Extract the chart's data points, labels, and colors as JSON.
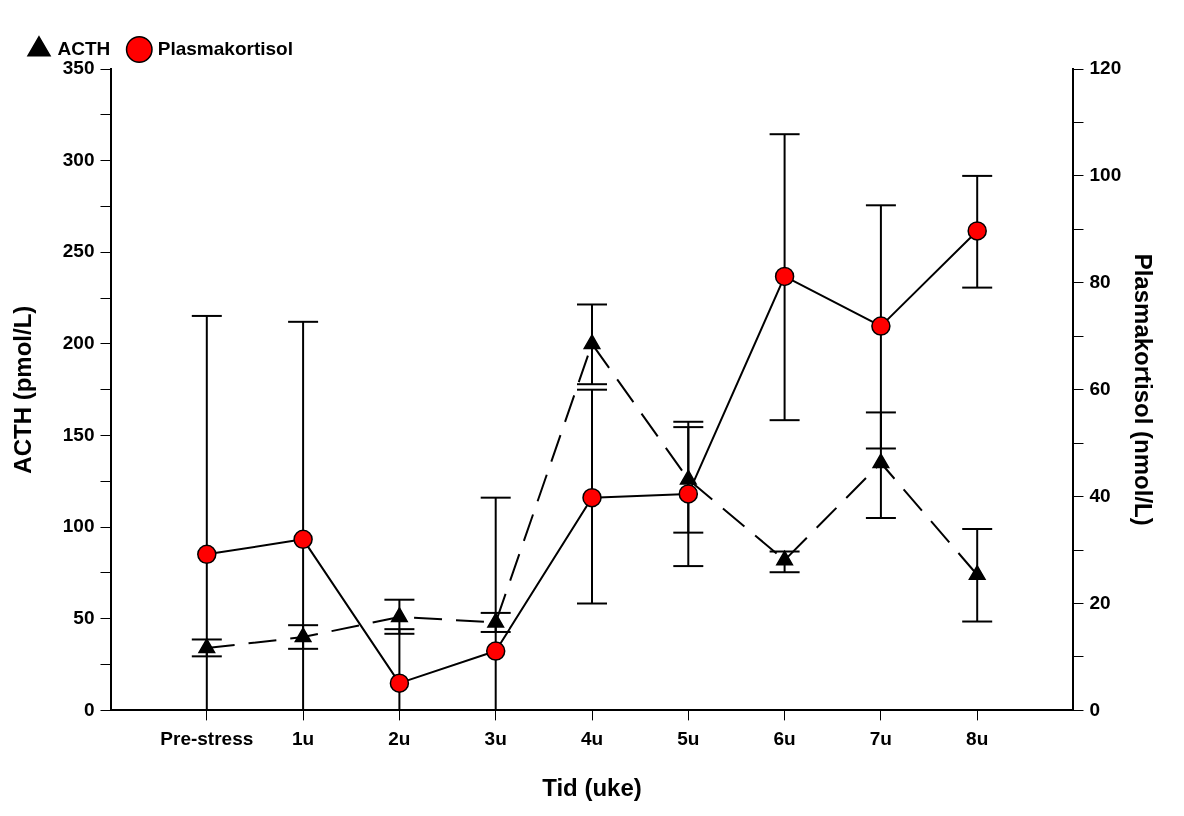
{
  "chart_data": {
    "type": "line",
    "xlabel": "Tid (uke)",
    "ylabel": "ACTH (pmol/L)",
    "y2label": "Plasmakortisol (nmol/L)",
    "categories": [
      "Pre-stress",
      "1u",
      "2u",
      "3u",
      "4u",
      "5u",
      "6u",
      "7u",
      "8u"
    ],
    "series": [
      {
        "name": "ACTH",
        "color": "#000000",
        "marker": "triangle",
        "line_style": "dashed",
        "values": [
          34,
          40,
          51,
          48,
          200,
          126,
          82,
          135,
          74
        ],
        "errors": [
          [
            29.5,
            38.7
          ],
          [
            33.6,
            46.5
          ],
          [
            41.8,
            60.4
          ],
          [
            42.8,
            53.2
          ],
          [
            178,
            221.5
          ],
          [
            97,
            157.5
          ],
          [
            75.4,
            86.7
          ],
          [
            105,
            162.6
          ],
          [
            48.5,
            99
          ]
        ]
      },
      {
        "name": "Plasmakortisol",
        "color": "#ff0000",
        "marker": "circle",
        "line_style": "solid",
        "axis": "y2",
        "values": [
          29.2,
          32,
          5.1,
          11.1,
          39.8,
          40.5,
          81.2,
          71.9,
          89.7
        ],
        "errors": [
          [
            0,
            73.8
          ],
          [
            0,
            72.7
          ],
          [
            0,
            15.2
          ],
          [
            0,
            39.8
          ],
          [
            20,
            60
          ],
          [
            27,
            53
          ],
          [
            54.3,
            107.8
          ],
          [
            49,
            94.5
          ],
          [
            79.1,
            100
          ]
        ]
      }
    ],
    "ylim": [
      0,
      350
    ],
    "yticks": [
      0,
      {
        "value": 25,
        "label": null
      },
      50,
      {
        "value": 75,
        "label": null
      },
      100,
      {
        "value": 125,
        "label": null
      },
      150,
      {
        "value": 175,
        "label": null
      },
      200,
      {
        "value": 225,
        "label": null
      },
      250,
      {
        "value": 275,
        "label": null
      },
      300,
      {
        "value": 325,
        "label": null
      },
      350
    ],
    "y2lim": [
      0,
      120
    ],
    "y2ticks": [
      0,
      {
        "value": 10,
        "label": null
      },
      20,
      {
        "value": 30,
        "label": null
      },
      40,
      {
        "value": 50,
        "label": null
      },
      60,
      {
        "value": 70,
        "label": null
      },
      80,
      {
        "value": 90,
        "label": null
      },
      100,
      {
        "value": 110,
        "label": null
      },
      120
    ],
    "grid": false,
    "legend": "top left"
  }
}
